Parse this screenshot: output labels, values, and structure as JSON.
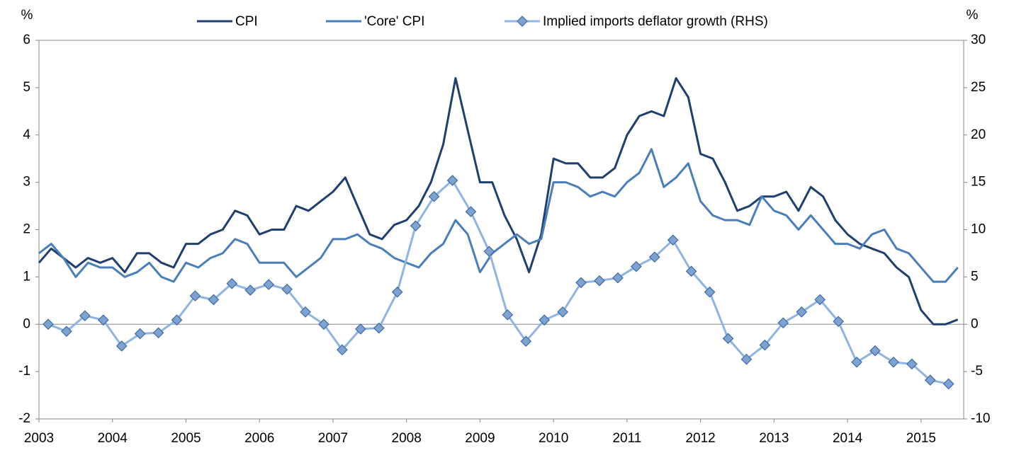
{
  "chart_data": {
    "type": "line",
    "y_label": "%",
    "y2_label": "%",
    "x": [
      2003,
      2003.167,
      2003.333,
      2003.5,
      2003.667,
      2003.833,
      2004,
      2004.167,
      2004.333,
      2004.5,
      2004.667,
      2004.833,
      2005,
      2005.167,
      2005.333,
      2005.5,
      2005.667,
      2005.833,
      2006,
      2006.167,
      2006.333,
      2006.5,
      2006.667,
      2006.833,
      2007,
      2007.167,
      2007.333,
      2007.5,
      2007.667,
      2007.833,
      2008,
      2008.167,
      2008.333,
      2008.5,
      2008.667,
      2008.833,
      2009,
      2009.167,
      2009.333,
      2009.5,
      2009.667,
      2009.833,
      2010,
      2010.167,
      2010.333,
      2010.5,
      2010.667,
      2010.833,
      2011,
      2011.167,
      2011.333,
      2011.5,
      2011.667,
      2011.833,
      2012,
      2012.167,
      2012.333,
      2012.5,
      2012.667,
      2012.833,
      2013,
      2013.167,
      2013.333,
      2013.5,
      2013.667,
      2013.833,
      2014,
      2014.167,
      2014.333,
      2014.5,
      2014.667,
      2014.833,
      2015,
      2015.167,
      2015.333,
      2015.5
    ],
    "series": [
      {
        "name": "CPI",
        "color": "#1f3f6e",
        "values": [
          1.3,
          1.6,
          1.4,
          1.2,
          1.4,
          1.3,
          1.4,
          1.1,
          1.5,
          1.5,
          1.3,
          1.2,
          1.7,
          1.7,
          1.9,
          2.0,
          2.4,
          2.3,
          1.9,
          2.0,
          2.0,
          2.5,
          2.4,
          2.6,
          2.8,
          3.1,
          2.5,
          1.9,
          1.8,
          2.1,
          2.2,
          2.5,
          3.0,
          3.8,
          5.2,
          4.1,
          3.0,
          3.0,
          2.3,
          1.8,
          1.1,
          1.9,
          3.5,
          3.4,
          3.4,
          3.1,
          3.1,
          3.3,
          4.0,
          4.4,
          4.5,
          4.4,
          5.2,
          4.8,
          3.6,
          3.5,
          3.0,
          2.4,
          2.5,
          2.7,
          2.7,
          2.8,
          2.4,
          2.9,
          2.7,
          2.2,
          1.9,
          1.7,
          1.6,
          1.5,
          1.2,
          1.0,
          0.3,
          0.0,
          0.0,
          0.1
        ]
      },
      {
        "name": "'Core' CPI",
        "color": "#4a7ebb",
        "values": [
          1.5,
          1.7,
          1.4,
          1.0,
          1.3,
          1.2,
          1.2,
          1.0,
          1.1,
          1.3,
          1.0,
          0.9,
          1.3,
          1.2,
          1.4,
          1.5,
          1.8,
          1.7,
          1.3,
          1.3,
          1.3,
          1.0,
          1.2,
          1.4,
          1.8,
          1.8,
          1.9,
          1.7,
          1.6,
          1.4,
          1.3,
          1.2,
          1.5,
          1.7,
          2.2,
          1.9,
          1.1,
          1.5,
          1.7,
          1.9,
          1.7,
          1.8,
          3.0,
          3.0,
          2.9,
          2.7,
          2.8,
          2.7,
          3.0,
          3.2,
          3.7,
          2.9,
          3.1,
          3.4,
          2.6,
          2.3,
          2.2,
          2.2,
          2.1,
          2.7,
          2.4,
          2.3,
          2.0,
          2.3,
          2.0,
          1.7,
          1.7,
          1.6,
          1.9,
          2.0,
          1.6,
          1.5,
          1.2,
          0.9,
          0.9,
          1.2
        ]
      },
      {
        "name": "Implied imports deflator growth (RHS)",
        "color": "#8eb4e3",
        "axis": "y2",
        "x": [
          2003.125,
          2003.375,
          2003.625,
          2003.875,
          2004.125,
          2004.375,
          2004.625,
          2004.875,
          2005.125,
          2005.375,
          2005.625,
          2005.875,
          2006.125,
          2006.375,
          2006.625,
          2006.875,
          2007.125,
          2007.375,
          2007.625,
          2007.875,
          2008.125,
          2008.375,
          2008.625,
          2008.875,
          2009.125,
          2009.375,
          2009.625,
          2009.875,
          2010.125,
          2010.375,
          2010.625,
          2010.875,
          2011.125,
          2011.375,
          2011.625,
          2011.875,
          2012.125,
          2012.375,
          2012.625,
          2012.875,
          2013.125,
          2013.375,
          2013.625,
          2013.875,
          2014.125,
          2014.375,
          2014.625,
          2014.875,
          2015.125,
          2015.375
        ],
        "values": [
          0,
          -0.75,
          0.9,
          0.45,
          -2.3,
          -1,
          -0.9,
          0.45,
          3,
          2.6,
          4.3,
          3.6,
          4.2,
          3.7,
          1.3,
          0,
          -2.7,
          -0.5,
          -0.4,
          3.4,
          10.4,
          13.5,
          15.2,
          11.9,
          7.7,
          1,
          -1.8,
          0.45,
          1.3,
          4.4,
          4.6,
          4.9,
          6.1,
          7.1,
          8.9,
          5.6,
          3.4,
          -1.5,
          -3.7,
          -2.2,
          0.15,
          1.3,
          2.6,
          0.3,
          -4,
          -2.8,
          -4,
          -4.2,
          -5.9,
          -6.3
        ]
      }
    ],
    "xlim": [
      2003,
      2015.58
    ],
    "xticks": [
      2003,
      2004,
      2005,
      2006,
      2007,
      2008,
      2009,
      2010,
      2011,
      2012,
      2013,
      2014,
      2015
    ],
    "ylim": [
      -2,
      6
    ],
    "yticks": [
      -2,
      -1,
      0,
      1,
      2,
      3,
      4,
      5,
      6
    ],
    "y2lim": [
      -10,
      30
    ],
    "y2ticks": [
      -10,
      -5,
      0,
      5,
      10,
      15,
      20,
      25,
      30
    ],
    "legend": "top"
  }
}
